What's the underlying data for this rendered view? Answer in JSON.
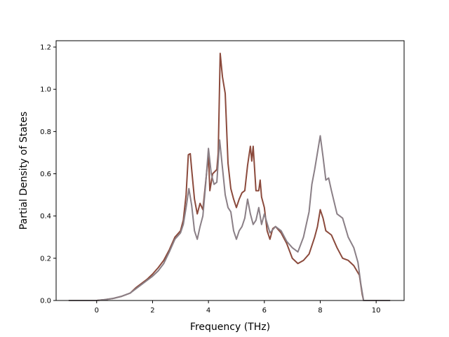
{
  "chart_data": {
    "type": "line",
    "title": "",
    "xlabel": "Frequency (THz)",
    "ylabel": "Partial Density of States",
    "xlim": [
      -1.45,
      11.0
    ],
    "ylim": [
      0.0,
      1.23
    ],
    "x_ticks": [
      0,
      2,
      4,
      6,
      8,
      10
    ],
    "x_tick_labels": [
      "0",
      "2",
      "4",
      "6",
      "8",
      "10"
    ],
    "y_ticks": [
      0.0,
      0.2,
      0.4,
      0.6,
      0.8,
      1.0,
      1.2
    ],
    "y_tick_labels": [
      "0.0",
      "0.2",
      "0.4",
      "0.6",
      "0.8",
      "1.0",
      "1.2"
    ],
    "grid": false,
    "legend": "none",
    "series": [
      {
        "color": "#8b4a3c",
        "points": [
          [
            -1.0,
            0.0
          ],
          [
            0.0,
            0.0
          ],
          [
            0.3,
            0.004
          ],
          [
            0.6,
            0.01
          ],
          [
            0.9,
            0.02
          ],
          [
            1.2,
            0.035
          ],
          [
            1.4,
            0.06
          ],
          [
            1.6,
            0.08
          ],
          [
            1.8,
            0.1
          ],
          [
            2.0,
            0.125
          ],
          [
            2.2,
            0.155
          ],
          [
            2.4,
            0.19
          ],
          [
            2.6,
            0.24
          ],
          [
            2.8,
            0.3
          ],
          [
            3.0,
            0.33
          ],
          [
            3.1,
            0.38
          ],
          [
            3.2,
            0.5
          ],
          [
            3.28,
            0.69
          ],
          [
            3.35,
            0.695
          ],
          [
            3.4,
            0.62
          ],
          [
            3.5,
            0.48
          ],
          [
            3.6,
            0.41
          ],
          [
            3.7,
            0.46
          ],
          [
            3.8,
            0.43
          ],
          [
            3.9,
            0.56
          ],
          [
            4.0,
            0.69
          ],
          [
            4.05,
            0.52
          ],
          [
            4.15,
            0.6
          ],
          [
            4.3,
            0.62
          ],
          [
            4.35,
            0.7
          ],
          [
            4.42,
            1.17
          ],
          [
            4.5,
            1.06
          ],
          [
            4.6,
            0.98
          ],
          [
            4.7,
            0.65
          ],
          [
            4.8,
            0.53
          ],
          [
            4.9,
            0.48
          ],
          [
            5.0,
            0.44
          ],
          [
            5.1,
            0.48
          ],
          [
            5.2,
            0.51
          ],
          [
            5.3,
            0.52
          ],
          [
            5.4,
            0.64
          ],
          [
            5.5,
            0.73
          ],
          [
            5.55,
            0.66
          ],
          [
            5.6,
            0.73
          ],
          [
            5.7,
            0.52
          ],
          [
            5.8,
            0.52
          ],
          [
            5.85,
            0.57
          ],
          [
            5.9,
            0.49
          ],
          [
            6.0,
            0.44
          ],
          [
            6.1,
            0.33
          ],
          [
            6.2,
            0.29
          ],
          [
            6.3,
            0.34
          ],
          [
            6.4,
            0.35
          ],
          [
            6.6,
            0.32
          ],
          [
            6.8,
            0.27
          ],
          [
            7.0,
            0.2
          ],
          [
            7.2,
            0.175
          ],
          [
            7.4,
            0.19
          ],
          [
            7.6,
            0.22
          ],
          [
            7.8,
            0.3
          ],
          [
            7.9,
            0.35
          ],
          [
            8.0,
            0.43
          ],
          [
            8.1,
            0.39
          ],
          [
            8.2,
            0.33
          ],
          [
            8.4,
            0.31
          ],
          [
            8.6,
            0.25
          ],
          [
            8.8,
            0.2
          ],
          [
            9.0,
            0.19
          ],
          [
            9.2,
            0.165
          ],
          [
            9.4,
            0.12
          ],
          [
            9.5,
            0.03
          ],
          [
            9.55,
            0.0
          ],
          [
            10.5,
            0.0
          ]
        ]
      },
      {
        "color": "#8a7f86",
        "points": [
          [
            -1.0,
            0.0
          ],
          [
            0.0,
            0.0
          ],
          [
            0.3,
            0.004
          ],
          [
            0.6,
            0.01
          ],
          [
            0.9,
            0.02
          ],
          [
            1.2,
            0.035
          ],
          [
            1.4,
            0.055
          ],
          [
            1.6,
            0.075
          ],
          [
            1.8,
            0.095
          ],
          [
            2.0,
            0.115
          ],
          [
            2.2,
            0.14
          ],
          [
            2.4,
            0.175
          ],
          [
            2.6,
            0.23
          ],
          [
            2.8,
            0.29
          ],
          [
            3.0,
            0.32
          ],
          [
            3.1,
            0.36
          ],
          [
            3.2,
            0.44
          ],
          [
            3.3,
            0.53
          ],
          [
            3.4,
            0.45
          ],
          [
            3.5,
            0.33
          ],
          [
            3.6,
            0.29
          ],
          [
            3.7,
            0.35
          ],
          [
            3.8,
            0.4
          ],
          [
            3.9,
            0.55
          ],
          [
            4.0,
            0.72
          ],
          [
            4.1,
            0.6
          ],
          [
            4.2,
            0.55
          ],
          [
            4.3,
            0.56
          ],
          [
            4.4,
            0.76
          ],
          [
            4.5,
            0.63
          ],
          [
            4.6,
            0.5
          ],
          [
            4.7,
            0.44
          ],
          [
            4.8,
            0.42
          ],
          [
            4.9,
            0.33
          ],
          [
            5.0,
            0.29
          ],
          [
            5.1,
            0.33
          ],
          [
            5.2,
            0.35
          ],
          [
            5.3,
            0.39
          ],
          [
            5.4,
            0.48
          ],
          [
            5.5,
            0.41
          ],
          [
            5.6,
            0.36
          ],
          [
            5.7,
            0.38
          ],
          [
            5.8,
            0.44
          ],
          [
            5.9,
            0.36
          ],
          [
            6.0,
            0.41
          ],
          [
            6.2,
            0.32
          ],
          [
            6.4,
            0.35
          ],
          [
            6.6,
            0.33
          ],
          [
            6.8,
            0.28
          ],
          [
            7.0,
            0.25
          ],
          [
            7.2,
            0.23
          ],
          [
            7.4,
            0.3
          ],
          [
            7.6,
            0.42
          ],
          [
            7.7,
            0.55
          ],
          [
            7.8,
            0.62
          ],
          [
            7.9,
            0.7
          ],
          [
            8.0,
            0.78
          ],
          [
            8.1,
            0.68
          ],
          [
            8.2,
            0.57
          ],
          [
            8.3,
            0.58
          ],
          [
            8.4,
            0.52
          ],
          [
            8.6,
            0.41
          ],
          [
            8.8,
            0.39
          ],
          [
            9.0,
            0.3
          ],
          [
            9.2,
            0.25
          ],
          [
            9.35,
            0.18
          ],
          [
            9.45,
            0.08
          ],
          [
            9.55,
            0.0
          ],
          [
            10.5,
            0.0
          ]
        ]
      }
    ]
  }
}
